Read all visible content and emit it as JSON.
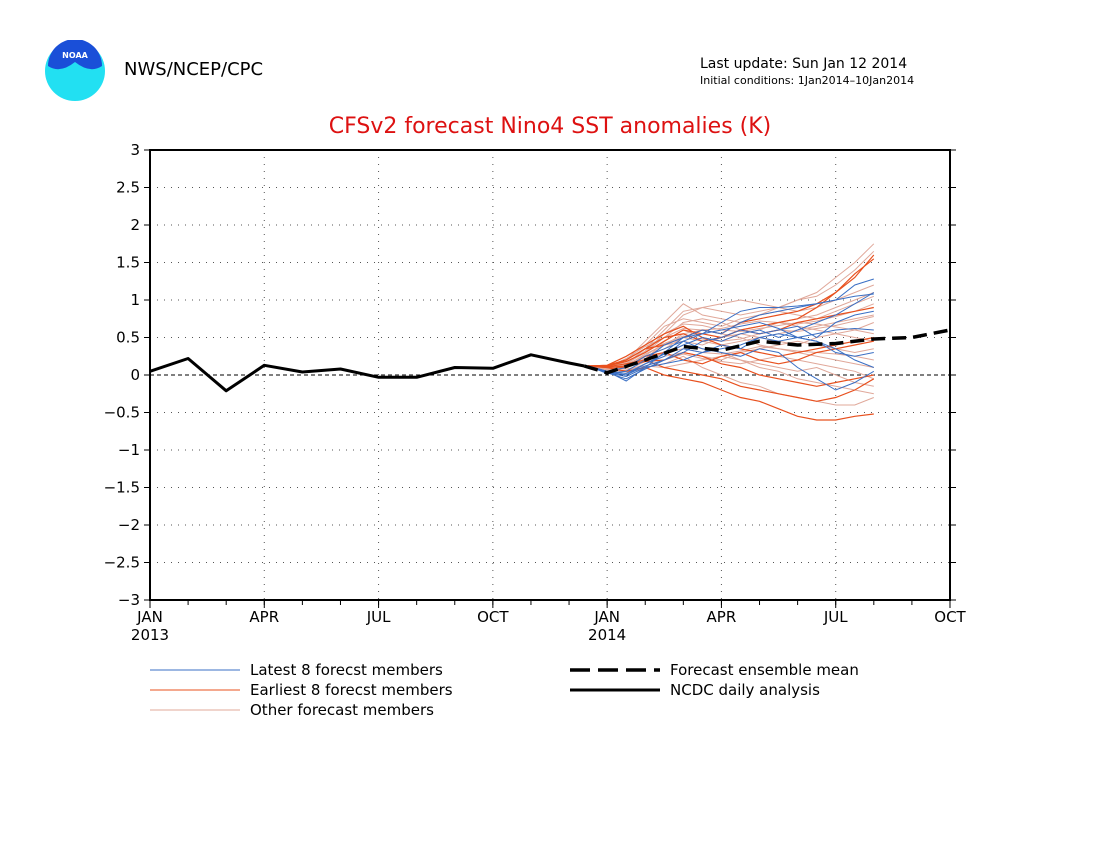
{
  "header": {
    "org": "NWS/NCEP/CPC",
    "last_update": "Last update: Sun Jan 12 2014",
    "initial_conditions": "Initial conditions: 1Jan2014–10Jan2014",
    "logo_text": "NOAA"
  },
  "chart_data": {
    "type": "line",
    "title": "CFSv2 forecast Nino4 SST anomalies (K)",
    "xlabel": "",
    "ylabel": "",
    "x_ticks": [
      {
        "label": "JAN",
        "year": "2013",
        "month": 0
      },
      {
        "label": "APR",
        "year": "",
        "month": 3
      },
      {
        "label": "JUL",
        "year": "",
        "month": 6
      },
      {
        "label": "OCT",
        "year": "",
        "month": 9
      },
      {
        "label": "JAN",
        "year": "2014",
        "month": 12
      },
      {
        "label": "APR",
        "year": "",
        "month": 15
      },
      {
        "label": "JUL",
        "year": "",
        "month": 18
      },
      {
        "label": "OCT",
        "year": "",
        "month": 21
      }
    ],
    "y_ticks": [
      3,
      2.5,
      2,
      1.5,
      1,
      0.5,
      0,
      -0.5,
      -1,
      -1.5,
      -2,
      -2.5,
      -3
    ],
    "y_tick_labels": [
      "3",
      "2.5",
      "2",
      "1.5",
      "1",
      "0.5",
      "0",
      "−0.5",
      "−1",
      "−1.5",
      "−2",
      "−2.5",
      "−3"
    ],
    "xlim": [
      0,
      21
    ],
    "ylim": [
      -3,
      3
    ],
    "grid": true,
    "zero_line": true,
    "colors": {
      "latest": "#3a6fc4",
      "earliest": "#e8501e",
      "other": "#e0a89a",
      "mean": "#000000",
      "analysis": "#000000",
      "title": "#dd1111",
      "logo_outer": "#22e0f2",
      "logo_inner": "#1a4fd8"
    },
    "ncdc_analysis": {
      "name": "NCDC daily analysis",
      "points": [
        [
          0,
          0.05
        ],
        [
          1,
          0.22
        ],
        [
          2,
          -0.21
        ],
        [
          3,
          0.13
        ],
        [
          4,
          0.04
        ],
        [
          5,
          0.08
        ],
        [
          6,
          -0.03
        ],
        [
          7,
          -0.03
        ],
        [
          8,
          0.1
        ],
        [
          9,
          0.09
        ],
        [
          10,
          0.27
        ],
        [
          11,
          0.16
        ],
        [
          11.4,
          0.12
        ]
      ]
    },
    "ensemble_mean": {
      "name": "Forecast ensemble mean",
      "points": [
        [
          11.4,
          0.12
        ],
        [
          12,
          0.03
        ],
        [
          13,
          0.2
        ],
        [
          14,
          0.38
        ],
        [
          15,
          0.33
        ],
        [
          16,
          0.45
        ],
        [
          17,
          0.4
        ],
        [
          18,
          0.42
        ],
        [
          19,
          0.48
        ],
        [
          20,
          0.5
        ],
        [
          21,
          0.6
        ]
      ]
    },
    "latest_members": {
      "name": "Latest 8 forecst members",
      "start_x": 11.5,
      "x_step": 0.5,
      "lines": [
        [
          0.12,
          0.05,
          -0.08,
          0.1,
          0.3,
          0.5,
          0.6,
          0.55,
          0.7,
          0.8,
          0.85,
          0.9,
          0.95,
          1.0,
          1.2,
          1.28
        ],
        [
          0.12,
          0.05,
          0.02,
          0.15,
          0.28,
          0.4,
          0.5,
          0.45,
          0.55,
          0.6,
          0.5,
          0.6,
          0.7,
          0.8,
          0.95,
          1.1
        ],
        [
          0.12,
          0.04,
          0.0,
          0.12,
          0.2,
          0.3,
          0.45,
          0.5,
          0.6,
          0.55,
          0.6,
          0.65,
          0.5,
          0.7,
          0.8,
          0.85
        ],
        [
          0.12,
          0.03,
          -0.05,
          0.08,
          0.2,
          0.35,
          0.3,
          0.4,
          0.35,
          0.5,
          0.45,
          0.5,
          0.55,
          0.6,
          0.62,
          0.6
        ],
        [
          0.12,
          0.02,
          0.05,
          0.2,
          0.4,
          0.5,
          0.55,
          0.6,
          0.65,
          0.7,
          0.62,
          0.5,
          0.45,
          0.3,
          0.25,
          0.3
        ],
        [
          0.12,
          0.05,
          0.1,
          0.25,
          0.35,
          0.45,
          0.35,
          0.3,
          0.25,
          0.35,
          0.3,
          0.1,
          -0.05,
          -0.2,
          -0.1,
          0.05
        ],
        [
          0.12,
          0.04,
          0.0,
          0.15,
          0.25,
          0.45,
          0.55,
          0.7,
          0.85,
          0.9,
          0.9,
          0.92,
          0.95,
          1.0,
          1.05,
          1.08
        ],
        [
          0.12,
          0.03,
          -0.02,
          0.1,
          0.15,
          0.2,
          0.3,
          0.35,
          0.4,
          0.5,
          0.55,
          0.5,
          0.45,
          0.35,
          0.2,
          0.1
        ]
      ]
    },
    "earliest_members": {
      "name": "Earliest 8 forecst members",
      "start_x": 11.5,
      "x_step": 0.5,
      "lines": [
        [
          0.12,
          0.12,
          0.18,
          0.3,
          0.45,
          0.6,
          0.55,
          0.5,
          0.6,
          0.65,
          0.7,
          0.75,
          0.9,
          1.1,
          1.35,
          1.55
        ],
        [
          0.12,
          0.13,
          0.2,
          0.35,
          0.4,
          0.5,
          0.6,
          0.55,
          0.7,
          0.75,
          0.8,
          0.85,
          0.95,
          1.1,
          1.3,
          1.6
        ],
        [
          0.12,
          0.1,
          0.05,
          0.1,
          0.0,
          -0.05,
          -0.1,
          -0.2,
          -0.3,
          -0.35,
          -0.45,
          -0.55,
          -0.6,
          -0.6,
          -0.55,
          -0.52
        ],
        [
          0.12,
          0.11,
          0.15,
          0.2,
          0.1,
          0.05,
          0.0,
          -0.05,
          -0.15,
          -0.2,
          -0.25,
          -0.3,
          -0.35,
          -0.3,
          -0.2,
          -0.05
        ],
        [
          0.12,
          0.13,
          0.25,
          0.4,
          0.55,
          0.65,
          0.5,
          0.4,
          0.35,
          0.3,
          0.25,
          0.3,
          0.35,
          0.4,
          0.45,
          0.5
        ],
        [
          0.12,
          0.1,
          0.12,
          0.18,
          0.2,
          0.3,
          0.25,
          0.15,
          0.1,
          0.0,
          -0.05,
          -0.1,
          -0.15,
          -0.1,
          -0.05,
          0.0
        ],
        [
          0.12,
          0.12,
          0.2,
          0.35,
          0.5,
          0.55,
          0.45,
          0.5,
          0.6,
          0.55,
          0.6,
          0.7,
          0.75,
          0.8,
          0.85,
          0.9
        ],
        [
          0.12,
          0.11,
          0.1,
          0.25,
          0.3,
          0.2,
          0.15,
          0.25,
          0.3,
          0.2,
          0.15,
          0.2,
          0.3,
          0.35,
          0.4,
          0.45
        ]
      ]
    },
    "other_members": {
      "name": "Other forecast members",
      "start_x": 11.5,
      "x_step": 0.5,
      "lines": [
        [
          0.12,
          0.1,
          0.2,
          0.45,
          0.7,
          0.95,
          0.8,
          0.75,
          0.7,
          0.8,
          0.9,
          1.0,
          1.1,
          1.3,
          1.5,
          1.75
        ],
        [
          0.12,
          0.08,
          0.15,
          0.3,
          0.55,
          0.8,
          0.9,
          0.85,
          0.8,
          0.85,
          0.9,
          1.0,
          1.05,
          1.2,
          1.4,
          1.65
        ],
        [
          0.12,
          0.07,
          0.05,
          0.1,
          0.15,
          0.25,
          0.1,
          0.0,
          -0.1,
          -0.15,
          -0.25,
          -0.3,
          -0.35,
          -0.4,
          -0.4,
          -0.3
        ],
        [
          0.12,
          0.09,
          0.1,
          0.2,
          0.3,
          0.4,
          0.35,
          0.3,
          0.2,
          0.1,
          0.05,
          -0.05,
          -0.1,
          -0.15,
          -0.2,
          -0.25
        ],
        [
          0.12,
          0.1,
          0.18,
          0.3,
          0.5,
          0.7,
          0.75,
          0.7,
          0.6,
          0.65,
          0.7,
          0.75,
          0.8,
          0.9,
          1.0,
          1.1
        ],
        [
          0.12,
          0.08,
          0.12,
          0.25,
          0.35,
          0.5,
          0.45,
          0.4,
          0.45,
          0.5,
          0.45,
          0.4,
          0.5,
          0.55,
          0.6,
          0.7
        ],
        [
          0.12,
          0.09,
          0.1,
          0.22,
          0.4,
          0.55,
          0.6,
          0.55,
          0.5,
          0.4,
          0.35,
          0.3,
          0.25,
          0.2,
          0.15,
          0.1
        ],
        [
          0.12,
          0.1,
          0.15,
          0.35,
          0.6,
          0.85,
          0.9,
          0.95,
          1.0,
          0.95,
          0.9,
          0.85,
          0.9,
          1.0,
          1.1,
          1.2
        ],
        [
          0.12,
          0.08,
          0.05,
          0.15,
          0.25,
          0.3,
          0.25,
          0.2,
          0.3,
          0.35,
          0.4,
          0.45,
          0.4,
          0.35,
          0.3,
          0.35
        ],
        [
          0.12,
          0.07,
          0.1,
          0.2,
          0.45,
          0.6,
          0.5,
          0.45,
          0.55,
          0.6,
          0.7,
          0.65,
          0.6,
          0.55,
          0.5,
          0.45
        ],
        [
          0.12,
          0.1,
          0.2,
          0.4,
          0.65,
          0.75,
          0.7,
          0.65,
          0.75,
          0.8,
          0.85,
          0.8,
          0.75,
          0.85,
          0.95,
          1.05
        ],
        [
          0.12,
          0.09,
          0.08,
          0.12,
          0.1,
          0.15,
          0.2,
          0.25,
          0.2,
          0.15,
          0.1,
          0.05,
          0.1,
          0.0,
          -0.1,
          -0.15
        ],
        [
          0.12,
          0.08,
          0.12,
          0.28,
          0.4,
          0.45,
          0.4,
          0.5,
          0.55,
          0.5,
          0.55,
          0.6,
          0.65,
          0.7,
          0.75,
          0.8
        ],
        [
          0.12,
          0.1,
          0.22,
          0.38,
          0.5,
          0.62,
          0.6,
          0.62,
          0.68,
          0.72,
          0.7,
          0.68,
          0.72,
          0.78,
          0.85,
          0.95
        ],
        [
          0.12,
          0.07,
          0.06,
          0.18,
          0.3,
          0.35,
          0.3,
          0.28,
          0.32,
          0.38,
          0.35,
          0.32,
          0.3,
          0.28,
          0.25,
          0.2
        ],
        [
          0.12,
          0.09,
          0.14,
          0.26,
          0.42,
          0.52,
          0.48,
          0.45,
          0.48,
          0.55,
          0.6,
          0.58,
          0.62,
          0.66,
          0.72,
          0.78
        ],
        [
          0.12,
          0.1,
          0.16,
          0.32,
          0.55,
          0.68,
          0.66,
          0.6,
          0.58,
          0.62,
          0.66,
          0.7,
          0.68,
          0.64,
          0.6,
          0.55
        ],
        [
          0.12,
          0.08,
          0.04,
          0.08,
          0.2,
          0.28,
          0.22,
          0.18,
          0.15,
          0.2,
          0.25,
          0.2,
          0.15,
          0.1,
          0.05,
          -0.05
        ]
      ]
    },
    "legend": [
      {
        "label": "Latest 8 forecst members",
        "style": "latest",
        "column": 0,
        "row": 0
      },
      {
        "label": "Earliest 8 forecst members",
        "style": "earliest",
        "column": 0,
        "row": 1
      },
      {
        "label": "Other forecast members",
        "style": "other",
        "column": 0,
        "row": 2
      },
      {
        "label": "Forecast ensemble mean",
        "style": "mean",
        "column": 1,
        "row": 0
      },
      {
        "label": "NCDC daily analysis",
        "style": "analysis",
        "column": 1,
        "row": 1
      }
    ]
  }
}
